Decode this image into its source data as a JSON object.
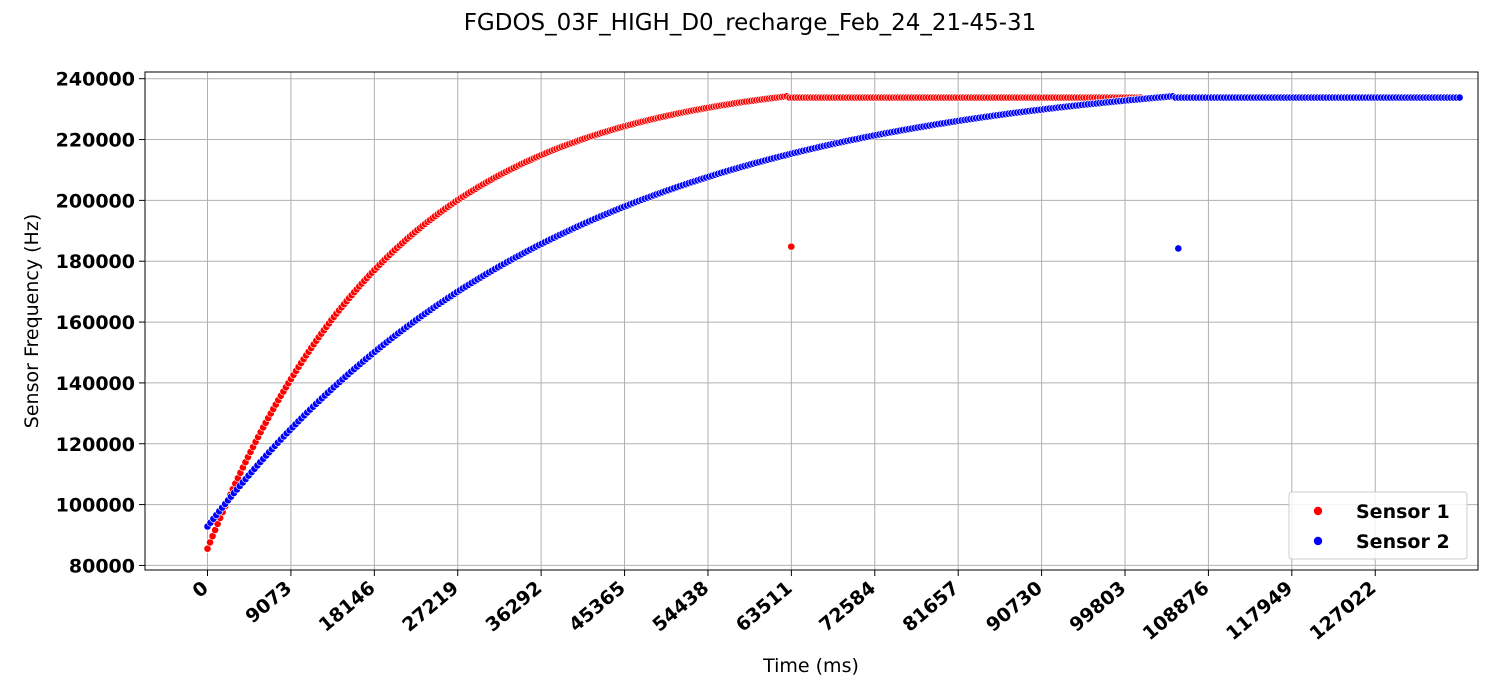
{
  "chart_data": {
    "type": "scatter",
    "title": "FGDOS_03F_HIGH_D0_recharge_Feb_24_21-45-31",
    "xlabel": "Time (ms)",
    "ylabel": "Sensor Frequency (Hz)",
    "xlim": [
      -6800,
      138200
    ],
    "ylim": [
      78500,
      242200
    ],
    "x_ticks": [
      0,
      9073,
      18146,
      27219,
      36292,
      45365,
      54438,
      63511,
      72584,
      81657,
      90730,
      99803,
      108876,
      117949,
      127022
    ],
    "y_ticks": [
      80000,
      100000,
      120000,
      140000,
      160000,
      180000,
      200000,
      220000,
      240000
    ],
    "grid": true,
    "legend_position": "lower-right",
    "series": [
      {
        "name": "Sensor 1",
        "color": "#ff0000",
        "rise": {
          "x_start": 0,
          "x_end": 63000,
          "y_start": 85500,
          "y_end": 234200,
          "time_constant": 20500,
          "count": 230
        },
        "plateau": {
          "x_start": 63300,
          "x_end": 101500,
          "y": 233800,
          "count": 130
        },
        "outliers": [
          {
            "x": 63500,
            "y": 184800
          }
        ]
      },
      {
        "name": "Sensor 2",
        "color": "#0000ff",
        "rise": {
          "x_start": 0,
          "x_end": 105000,
          "y_start": 92800,
          "y_end": 234200,
          "time_constant": 38000,
          "count": 330
        },
        "plateau": {
          "x_start": 105300,
          "x_end": 136200,
          "y": 233800,
          "count": 95
        },
        "outliers": [
          {
            "x": 105600,
            "y": 184200
          }
        ]
      }
    ]
  }
}
